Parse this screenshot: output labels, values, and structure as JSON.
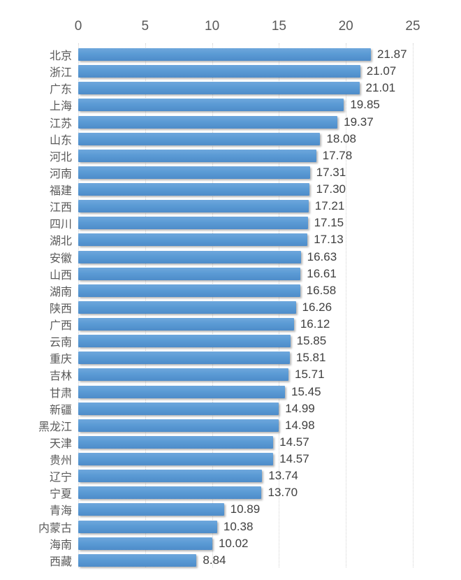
{
  "chart_data": {
    "type": "bar",
    "orientation": "horizontal",
    "title": "",
    "xlabel": "",
    "ylabel": "",
    "xlim": [
      0,
      25
    ],
    "x_ticks": [
      0,
      5,
      10,
      15,
      20,
      25
    ],
    "grid": "vertical-dotted",
    "legend": "none",
    "axis_position": "top",
    "categories": [
      "北京",
      "浙江",
      "广东",
      "上海",
      "江苏",
      "山东",
      "河北",
      "河南",
      "福建",
      "江西",
      "四川",
      "湖北",
      "安徽",
      "山西",
      "湖南",
      "陕西",
      "广西",
      "云南",
      "重庆",
      "吉林",
      "甘肃",
      "新疆",
      "黑龙江",
      "天津",
      "贵州",
      "辽宁",
      "宁夏",
      "青海",
      "内蒙古",
      "海南",
      "西藏"
    ],
    "values": [
      21.87,
      21.07,
      21.01,
      19.85,
      19.37,
      18.08,
      17.78,
      17.31,
      17.3,
      17.21,
      17.15,
      17.13,
      16.63,
      16.61,
      16.58,
      16.26,
      16.12,
      15.85,
      15.81,
      15.71,
      15.45,
      14.99,
      14.98,
      14.57,
      14.57,
      13.74,
      13.7,
      10.89,
      10.38,
      10.02,
      8.84
    ],
    "value_labels": [
      "21.87",
      "21.07",
      "21.01",
      "19.85",
      "19.37",
      "18.08",
      "17.78",
      "17.31",
      "17.30",
      "17.21",
      "17.15",
      "17.13",
      "16.63",
      "16.61",
      "16.58",
      "16.26",
      "16.12",
      "15.85",
      "15.81",
      "15.71",
      "15.45",
      "14.99",
      "14.98",
      "14.57",
      "14.57",
      "13.74",
      "13.70",
      "10.89",
      "10.38",
      "10.02",
      "8.84"
    ]
  },
  "colors": {
    "bar_top": "#6ea7dc",
    "bar_mid": "#5b9bd5",
    "bar_bottom": "#4e8cc9",
    "gridline": "#d2d2d2",
    "axis_text": "#595959",
    "category_text": "#595959",
    "value_text": "#3f3f3f",
    "background": "#ffffff"
  }
}
